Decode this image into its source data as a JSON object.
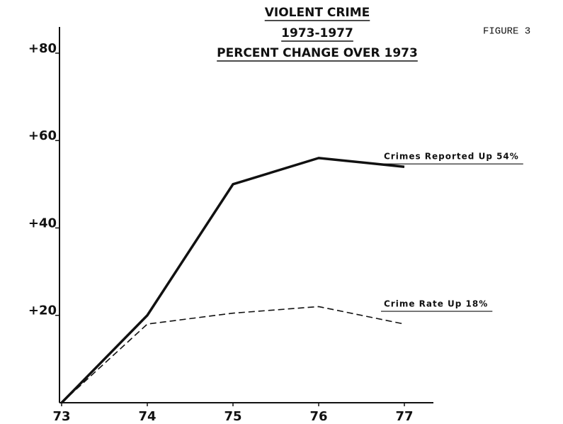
{
  "chart_data": {
    "type": "line",
    "title": [
      "VIOLENT CRIME",
      "1973-1977",
      "PERCENT CHANGE OVER 1973"
    ],
    "figure_label": "FIGURE 3",
    "categories": [
      "73",
      "74",
      "75",
      "76",
      "77"
    ],
    "series": [
      {
        "name": "Crimes Reported Up 54%",
        "color": "#111",
        "style": "solid",
        "values": [
          0,
          20,
          50,
          56,
          54
        ]
      },
      {
        "name": "Crime Rate Up 18%",
        "color": "#111",
        "style": "dashed",
        "values": [
          0,
          18,
          20.5,
          22,
          18
        ]
      }
    ],
    "ylim": [
      0,
      86
    ],
    "yticks": [
      {
        "value": 20,
        "label": "+20"
      },
      {
        "value": 40,
        "label": "+40"
      },
      {
        "value": 60,
        "label": "+60"
      },
      {
        "value": 80,
        "label": "+80"
      }
    ],
    "grid": false
  }
}
